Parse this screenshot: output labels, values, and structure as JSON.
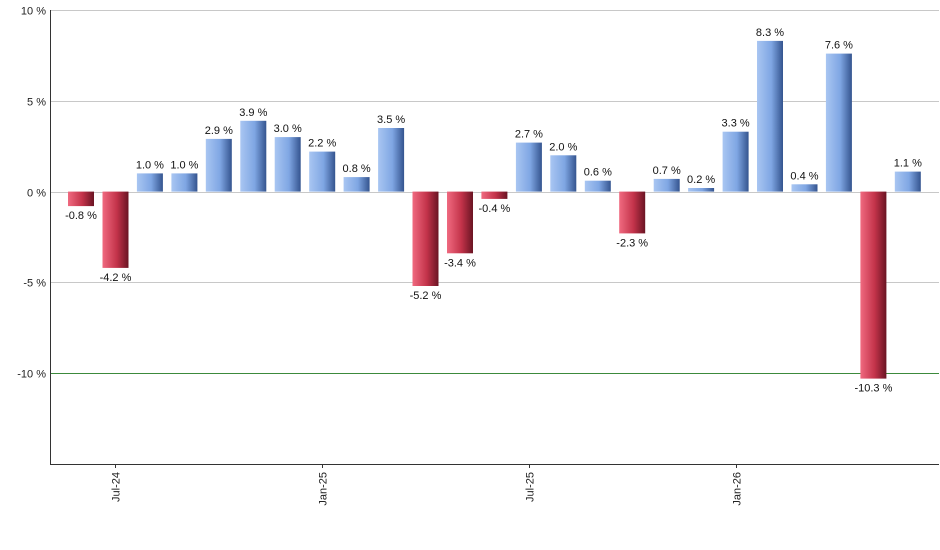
{
  "chart_data": {
    "type": "bar",
    "values": [
      -0.8,
      -4.2,
      1.0,
      1.0,
      2.9,
      3.9,
      3.0,
      2.2,
      0.8,
      3.5,
      -5.2,
      -3.4,
      -0.4,
      2.7,
      2.0,
      0.6,
      -2.3,
      0.7,
      0.2,
      3.3,
      8.3,
      0.4,
      7.6,
      -10.3,
      1.1
    ],
    "data_labels": [
      "-0.8 %",
      "-4.2 %",
      "1.0 %",
      "1.0 %",
      "2.9 %",
      "3.9 %",
      "3.0 %",
      "2.2 %",
      "0.8 %",
      "3.5 %",
      "-5.2 %",
      "-3.4 %",
      "-0.4 %",
      "2.7 %",
      "2.0 %",
      "0.6 %",
      "-2.3 %",
      "0.7 %",
      "0.2 %",
      "3.3 %",
      "8.3 %",
      "0.4 %",
      "7.6 %",
      "-10.3 %",
      "1.1 %"
    ],
    "x_ticks": [
      {
        "label": "Jul-24",
        "index": 1
      },
      {
        "label": "Jan-25",
        "index": 7
      },
      {
        "label": "Jul-25",
        "index": 13
      },
      {
        "label": "Jan-26",
        "index": 19
      }
    ],
    "y_ticks": [
      {
        "value": 10,
        "label": "10 %"
      },
      {
        "value": 5,
        "label": "5 %"
      },
      {
        "value": 0,
        "label": "0 %"
      },
      {
        "value": -5,
        "label": "-5 %"
      },
      {
        "value": -10,
        "label": "-10 %"
      }
    ],
    "ylim": [
      -15,
      10
    ],
    "reference_line": -10,
    "grid": true,
    "title": "",
    "xlabel": "",
    "ylabel": "",
    "colors": {
      "positive": "#7ea6e0",
      "negative": "#c9394f",
      "grid": "#c8c8c8",
      "reference": "#3c8a3c",
      "axis": "#333333"
    }
  }
}
